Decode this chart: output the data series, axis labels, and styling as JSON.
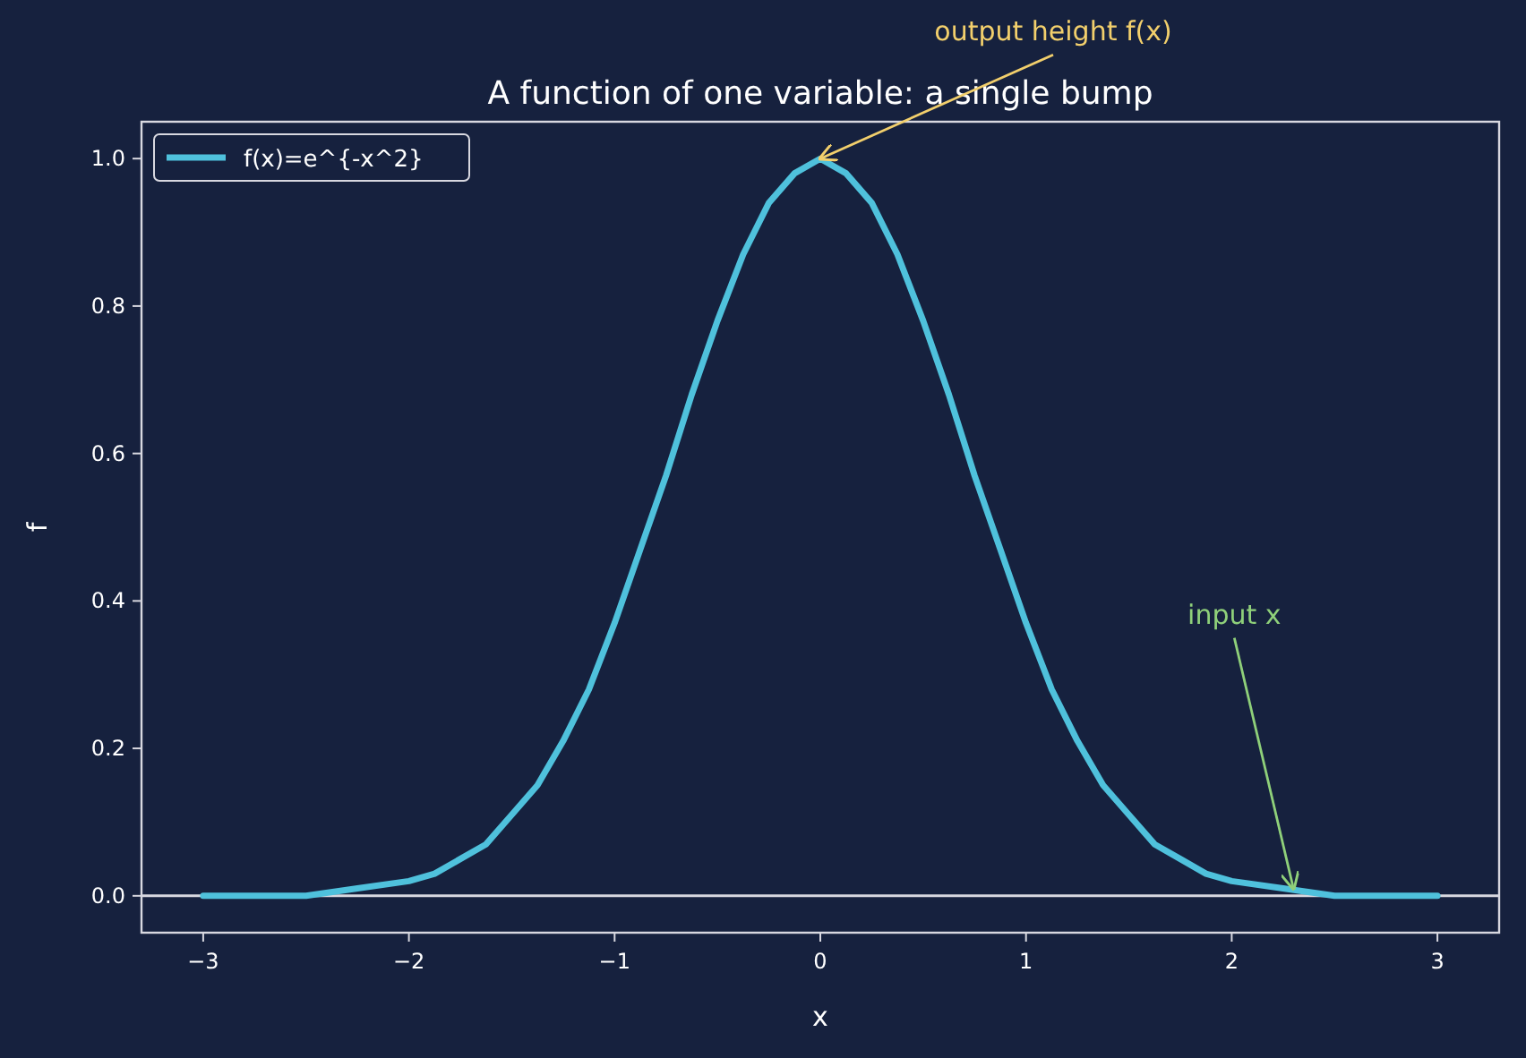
{
  "chart_data": {
    "type": "line",
    "title": "A function of one variable: a single bump",
    "xlabel": "x",
    "ylabel": "f",
    "x": [
      -3,
      -2.75,
      -2.5,
      -2.25,
      -2,
      -1.875,
      -1.75,
      -1.625,
      -1.5,
      -1.375,
      -1.25,
      -1.125,
      -1,
      -0.875,
      -0.75,
      -0.625,
      -0.5,
      -0.375,
      -0.25,
      -0.125,
      0,
      0.125,
      0.25,
      0.375,
      0.5,
      0.625,
      0.75,
      0.875,
      1,
      1.125,
      1.25,
      1.375,
      1.5,
      1.625,
      1.75,
      1.875,
      2,
      2.25,
      2.5,
      2.75,
      3
    ],
    "series": [
      {
        "name": "f(x)=e^{-x^2}",
        "color": "#4fc1dc",
        "values": [
          0,
          0,
          0,
          0.01,
          0.02,
          0.03,
          0.05,
          0.07,
          0.11,
          0.15,
          0.21,
          0.28,
          0.37,
          0.47,
          0.57,
          0.68,
          0.78,
          0.87,
          0.94,
          0.98,
          1,
          0.98,
          0.94,
          0.87,
          0.78,
          0.68,
          0.57,
          0.47,
          0.37,
          0.28,
          0.21,
          0.15,
          0.11,
          0.07,
          0.05,
          0.03,
          0.02,
          0.01,
          0,
          0,
          0
        ]
      }
    ],
    "xlim": [
      -3.3,
      3.3
    ],
    "ylim": [
      -0.05,
      1.05
    ],
    "xticks": [
      {
        "value": -3,
        "label": "−3"
      },
      {
        "value": -2,
        "label": "−2"
      },
      {
        "value": -1,
        "label": "−1"
      },
      0,
      1,
      2,
      3
    ],
    "yticks": [
      {
        "value": 0,
        "label": "0.0"
      },
      {
        "value": 0.2,
        "label": "0.2"
      },
      {
        "value": 0.4,
        "label": "0.4"
      },
      {
        "value": 0.6,
        "label": "0.6"
      },
      {
        "value": 0.8,
        "label": "0.8"
      },
      {
        "value": 1,
        "label": "1.0"
      }
    ],
    "ref_lines": [
      {
        "axis": "y",
        "value": 0,
        "color": "#d8d8e0"
      }
    ],
    "annotations": [
      {
        "text": "output height f(x)",
        "x": 0,
        "y": 1
      },
      {
        "text": "input x",
        "x": 2.3,
        "y": 0.01
      }
    ],
    "legend": "top left",
    "grid": false,
    "line_style": "solid",
    "marker": "none"
  }
}
